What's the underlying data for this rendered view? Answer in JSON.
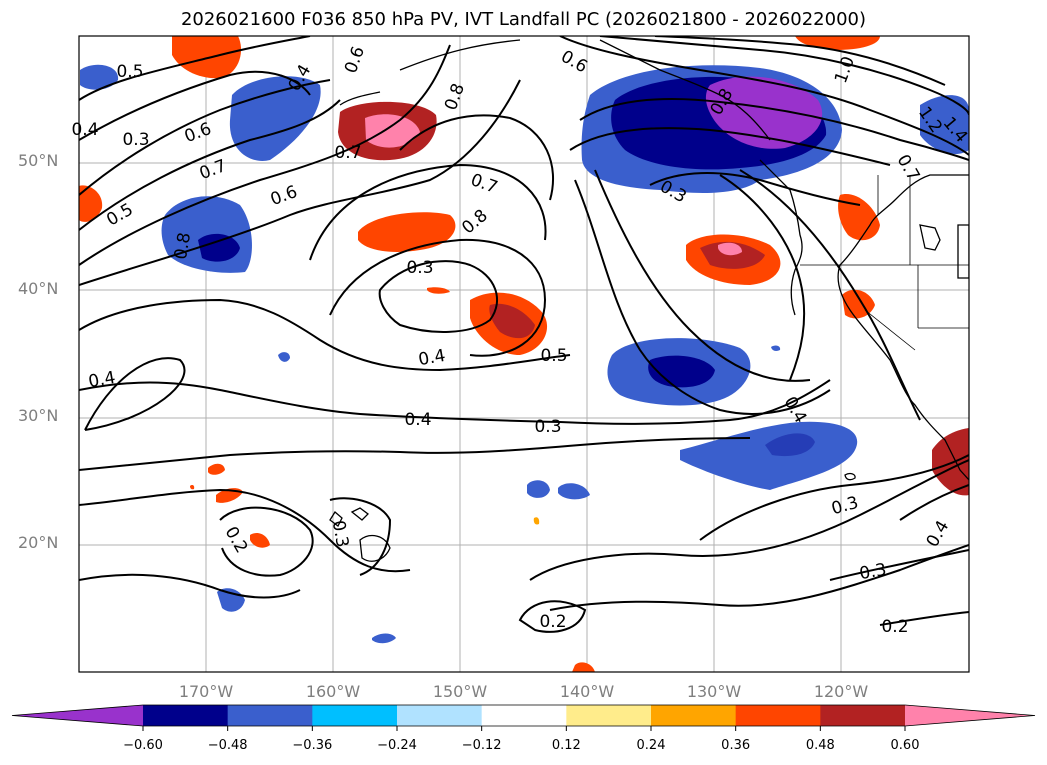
{
  "title": "2026021600 F036 850 hPa PV, IVT Landfall PC (2026021800 - 2026022000)",
  "lat_labels": [
    "50°N",
    "40°N",
    "30°N",
    "20°N"
  ],
  "lon_labels": [
    "170°W",
    "160°W",
    "150°W",
    "140°W",
    "130°W",
    "120°W"
  ],
  "colorbar": {
    "ticks": [
      "−0.60",
      "−0.48",
      "−0.36",
      "−0.24",
      "−0.12",
      "0.12",
      "0.24",
      "0.36",
      "0.48",
      "0.60"
    ],
    "colors": [
      "#9932cc",
      "#00008b",
      "#3a5fcd",
      "#00bfff",
      "#b0e2ff",
      "#ffffff",
      "#ffec8b",
      "#ffa500",
      "#ff4500",
      "#b22222",
      "#ff82ab"
    ]
  },
  "contour_labels": [
    "0.5",
    "0.4",
    "0.3",
    "0.4",
    "0.6",
    "0.6",
    "0.8",
    "0.8",
    "0.6",
    "1.0",
    "1.4",
    "1.2",
    "0.7",
    "0.7",
    "0.7",
    "0.6",
    "0.7",
    "0.8",
    "0.5",
    "0.8",
    "0.3",
    "0.4",
    "0.5",
    "0.4",
    "0.4",
    "0.3",
    "0.4",
    "0.3",
    "0.2",
    "0.3",
    "0.2",
    "0.3",
    "0.4",
    "0.2",
    "0.3"
  ],
  "colors": {
    "grid": "#b0b0b0",
    "contour": "#000000",
    "land": "#000000"
  }
}
